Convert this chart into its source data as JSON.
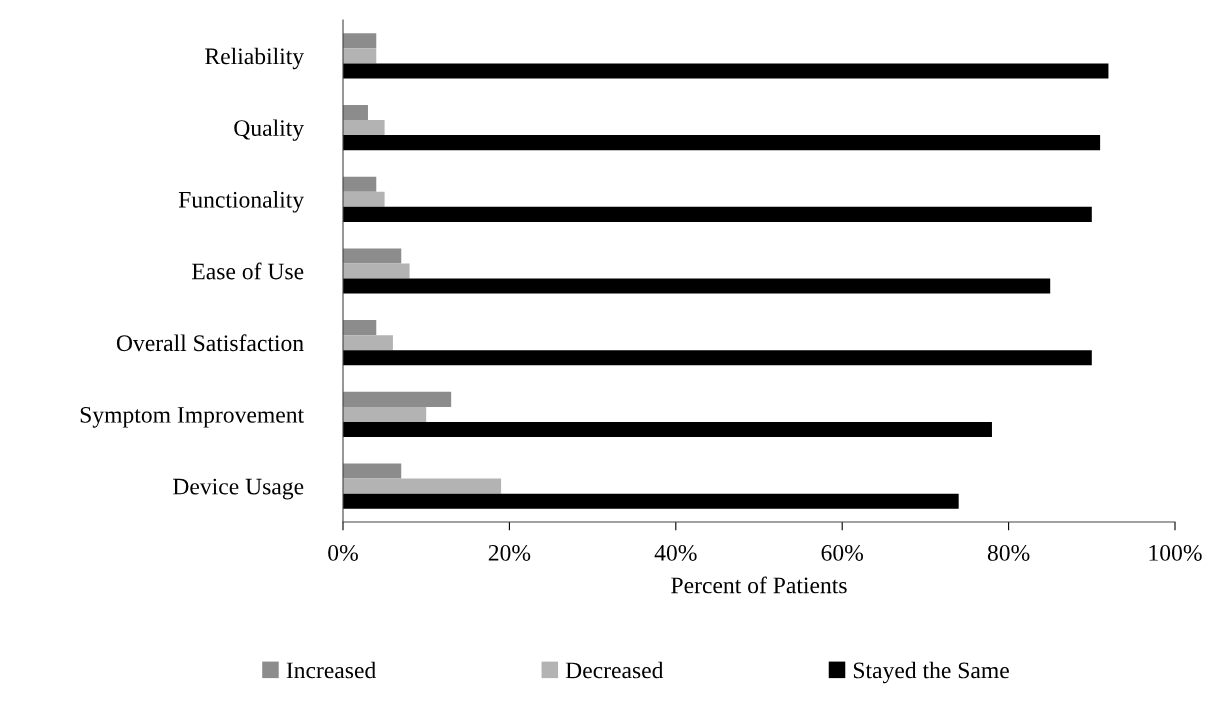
{
  "chart_data": {
    "type": "bar",
    "orientation": "horizontal",
    "xlabel": "Percent of Patients",
    "categories": [
      "Reliability",
      "Quality",
      "Functionality",
      "Ease of Use",
      "Overall Satisfaction",
      "Symptom Improvement",
      "Device Usage"
    ],
    "series": [
      {
        "name": "Increased",
        "color": "#8c8c8c",
        "values": [
          4,
          3,
          4,
          7,
          4,
          13,
          7
        ]
      },
      {
        "name": "Decreased",
        "color": "#b3b3b3",
        "values": [
          4,
          5,
          5,
          8,
          6,
          10,
          19
        ]
      },
      {
        "name": "Stayed the Same",
        "color": "#000000",
        "values": [
          92,
          91,
          90,
          85,
          90,
          78,
          74
        ]
      }
    ],
    "xlim": [
      0,
      100
    ],
    "xticks": [
      {
        "value": 0,
        "label": "0%"
      },
      {
        "value": 20,
        "label": "20%"
      },
      {
        "value": 40,
        "label": "40%"
      },
      {
        "value": 60,
        "label": "60%"
      },
      {
        "value": 80,
        "label": "80%"
      },
      {
        "value": 100,
        "label": "100%"
      }
    ],
    "grid": false,
    "legend": "bottom"
  }
}
